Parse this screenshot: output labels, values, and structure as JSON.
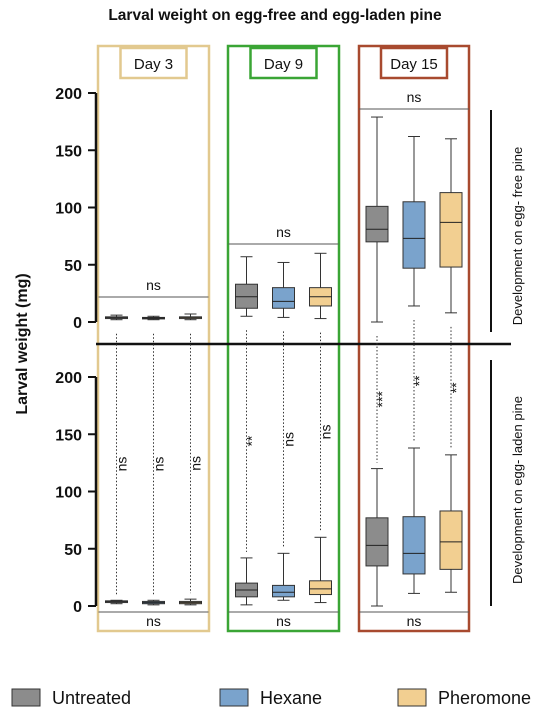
{
  "chart_data": {
    "type": "box",
    "title": "Larval weight on egg-free and egg-laden pine",
    "ylabel": "Larval weight (mg)",
    "ylim": [
      0,
      200
    ],
    "yticks": [
      "0",
      "50",
      "100",
      "150",
      "200"
    ],
    "panels": [
      {
        "id": "top",
        "label": "Development on egg- free pine"
      },
      {
        "id": "bottom",
        "label": "Development on egg- laden pine"
      }
    ],
    "days": [
      {
        "label": "Day 3",
        "color": "#e2c98f",
        "top_sig": "ns",
        "bottom_sig": "ns",
        "within": [
          "ns",
          "ns",
          "ns"
        ]
      },
      {
        "label": "Day 9",
        "color": "#3aa535",
        "top_sig": "ns",
        "bottom_sig": "ns",
        "within": [
          "**",
          "ns",
          "ns"
        ]
      },
      {
        "label": "Day 15",
        "color": "#a84a2f",
        "top_sig": "ns",
        "bottom_sig": "ns",
        "within": [
          "***",
          "**",
          "**"
        ]
      }
    ],
    "series": [
      {
        "name": "Untreated",
        "color": "#8c8c8c"
      },
      {
        "name": "Hexane",
        "color": "#7aa3cc"
      },
      {
        "name": "Pheromone",
        "color": "#f2cf91"
      }
    ],
    "boxes": {
      "top": [
        [
          [
            2,
            3,
            4,
            4.5,
            6
          ],
          [
            2,
            3,
            3.5,
            4,
            5
          ],
          [
            2,
            3,
            4,
            4.5,
            7
          ]
        ],
        [
          [
            5,
            12,
            22,
            33,
            57
          ],
          [
            4,
            12,
            18,
            30,
            52
          ],
          [
            3,
            14,
            22,
            30,
            60
          ]
        ],
        [
          [
            0,
            70,
            81,
            101,
            179
          ],
          [
            14,
            47,
            73,
            105,
            162
          ],
          [
            8,
            48,
            87,
            113,
            160
          ]
        ]
      ],
      "bottom": [
        [
          [
            2,
            3,
            4,
            4.5,
            5
          ],
          [
            1,
            2,
            3,
            4,
            5
          ],
          [
            1,
            2,
            3,
            4,
            6
          ]
        ],
        [
          [
            1,
            8,
            14,
            20,
            42
          ],
          [
            5,
            8,
            12,
            18,
            46
          ],
          [
            3,
            10,
            15,
            22,
            60
          ]
        ],
        [
          [
            0,
            35,
            53,
            77,
            120
          ],
          [
            11,
            28,
            46,
            78,
            138
          ],
          [
            12,
            32,
            56,
            83,
            132
          ]
        ]
      ]
    }
  }
}
